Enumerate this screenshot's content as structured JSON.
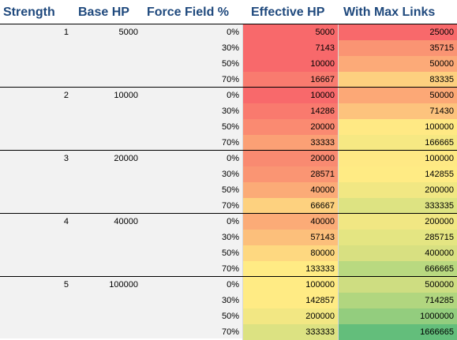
{
  "headers": {
    "strength": "Strength",
    "base_hp": "Base HP",
    "force_field": "Force Field %",
    "effective_hp": "Effective HP",
    "max_links": "With Max Links"
  },
  "rows": [
    {
      "strength": "1",
      "base_hp": "5000",
      "ff": "0%",
      "eff": "5000",
      "max": "25000",
      "eff_color": "#f8696b",
      "max_color": "#f8696b"
    },
    {
      "strength": "",
      "base_hp": "",
      "ff": "30%",
      "eff": "7143",
      "max": "35715",
      "eff_color": "#f8696b",
      "max_color": "#fa9473"
    },
    {
      "strength": "",
      "base_hp": "",
      "ff": "50%",
      "eff": "10000",
      "max": "50000",
      "eff_color": "#f8696b",
      "max_color": "#fcaa78"
    },
    {
      "strength": "",
      "base_hp": "",
      "ff": "70%",
      "eff": "16667",
      "max": "83335",
      "eff_color": "#f97b6f",
      "max_color": "#fdd07f"
    },
    {
      "strength": "2",
      "base_hp": "10000",
      "ff": "0%",
      "eff": "10000",
      "max": "50000",
      "eff_color": "#f8696b",
      "max_color": "#fca876"
    },
    {
      "strength": "",
      "base_hp": "",
      "ff": "30%",
      "eff": "14286",
      "max": "71430",
      "eff_color": "#f97a6e",
      "max_color": "#fdc37d"
    },
    {
      "strength": "",
      "base_hp": "",
      "ff": "50%",
      "eff": "20000",
      "max": "100000",
      "eff_color": "#fa8a71",
      "max_color": "#ffe984"
    },
    {
      "strength": "",
      "base_hp": "",
      "ff": "70%",
      "eff": "33333",
      "max": "166665",
      "eff_color": "#fba075",
      "max_color": "#f6e883"
    },
    {
      "strength": "3",
      "base_hp": "20000",
      "ff": "0%",
      "eff": "20000",
      "max": "100000",
      "eff_color": "#f98a71",
      "max_color": "#ffe984"
    },
    {
      "strength": "",
      "base_hp": "",
      "ff": "30%",
      "eff": "28571",
      "max": "142855",
      "eff_color": "#fa9573",
      "max_color": "#ffeb84"
    },
    {
      "strength": "",
      "base_hp": "",
      "ff": "50%",
      "eff": "40000",
      "max": "200000",
      "eff_color": "#fbab77",
      "max_color": "#f1e783"
    },
    {
      "strength": "",
      "base_hp": "",
      "ff": "70%",
      "eff": "66667",
      "max": "333335",
      "eff_color": "#fdd17f",
      "max_color": "#dde382"
    },
    {
      "strength": "4",
      "base_hp": "40000",
      "ff": "0%",
      "eff": "40000",
      "max": "200000",
      "eff_color": "#fbab77",
      "max_color": "#f1e783"
    },
    {
      "strength": "",
      "base_hp": "",
      "ff": "30%",
      "eff": "57143",
      "max": "285715",
      "eff_color": "#fcbf7b",
      "max_color": "#e4e582"
    },
    {
      "strength": "",
      "base_hp": "",
      "ff": "50%",
      "eff": "80000",
      "max": "400000",
      "eff_color": "#fed880",
      "max_color": "#d8e081"
    },
    {
      "strength": "",
      "base_hp": "",
      "ff": "70%",
      "eff": "133333",
      "max": "666665",
      "eff_color": "#ffeb84",
      "max_color": "#b9d980"
    },
    {
      "strength": "5",
      "base_hp": "100000",
      "ff": "0%",
      "eff": "100000",
      "max": "500000",
      "eff_color": "#ffeb84",
      "max_color": "#cedd81"
    },
    {
      "strength": "",
      "base_hp": "",
      "ff": "30%",
      "eff": "142857",
      "max": "714285",
      "eff_color": "#ffeb84",
      "max_color": "#b1d67f"
    },
    {
      "strength": "",
      "base_hp": "",
      "ff": "50%",
      "eff": "200000",
      "max": "1000000",
      "eff_color": "#f2e783",
      "max_color": "#93cd7e"
    },
    {
      "strength": "",
      "base_hp": "",
      "ff": "70%",
      "eff": "333333",
      "max": "1666665",
      "eff_color": "#dce282",
      "max_color": "#63be7b"
    }
  ]
}
